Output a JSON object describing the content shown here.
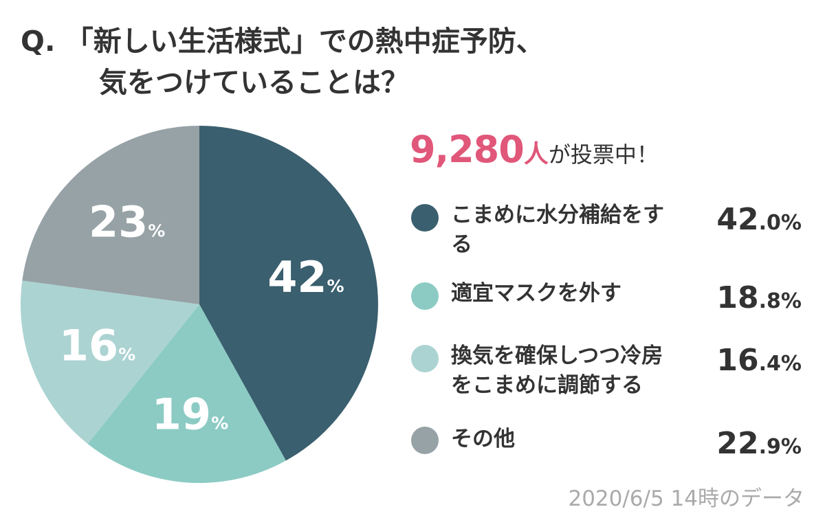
{
  "title": {
    "line1": "Q. 「新しい生活様式」での熱中症予防、",
    "line2": "気をつけていることは？"
  },
  "votes": {
    "count": "9,280",
    "unit": "人",
    "suffix": "が投票中！"
  },
  "footnote": "2020/6/5 14時のデータ",
  "chart_data": {
    "type": "pie",
    "slices": [
      {
        "label": "こまめに水分補給をする",
        "value": 42.0,
        "display": "42",
        "legend_int": "42",
        "legend_rest": ".0%",
        "color": "#3a5f6e"
      },
      {
        "label": "適宜マスクを外す",
        "value": 18.8,
        "display": "19",
        "legend_int": "18",
        "legend_rest": ".8%",
        "color": "#8ccbc4"
      },
      {
        "label": "換気を確保しつつ冷房をこまめに調節する",
        "value": 16.4,
        "display": "16",
        "legend_int": "16",
        "legend_rest": ".4%",
        "color": "#abd3d2"
      },
      {
        "label": "その他",
        "value": 22.9,
        "display": "23",
        "legend_int": "22",
        "legend_rest": ".9%",
        "color": "#97a2a6"
      }
    ],
    "percent_sign": "%",
    "start": "12 o'clock",
    "direction": "clockwise"
  }
}
